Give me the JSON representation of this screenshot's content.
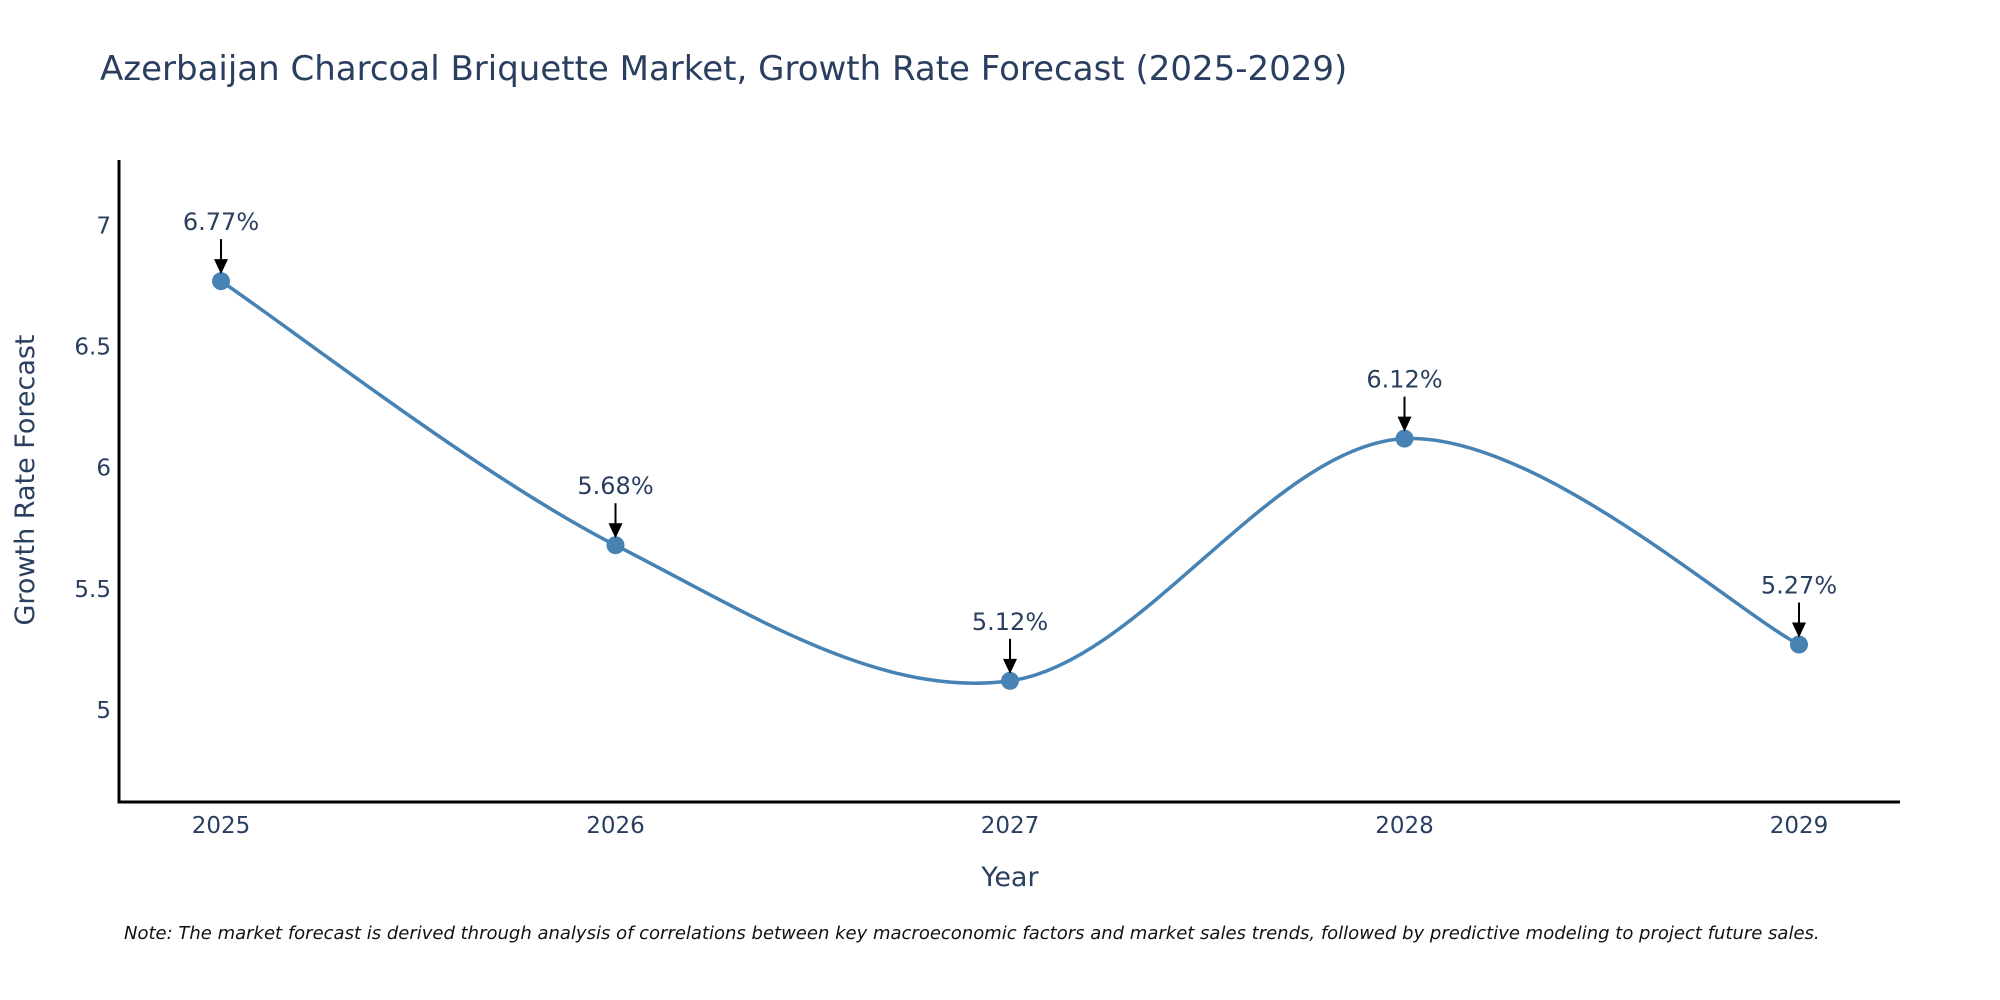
{
  "chart_data": {
    "type": "line",
    "title": "Azerbaijan Charcoal Briquette Market, Growth Rate Forecast (2025-2029)",
    "xlabel": "Year",
    "ylabel": "Growth Rate Forecast",
    "x": [
      "2025",
      "2026",
      "2027",
      "2028",
      "2029"
    ],
    "series": [
      {
        "name": "Growth Rate Forecast",
        "values": [
          6.77,
          5.68,
          5.12,
          6.12,
          5.27
        ],
        "labels": [
          "6.77%",
          "5.68%",
          "5.12%",
          "6.12%",
          "5.27%"
        ]
      }
    ],
    "ylim": [
      4.62,
      7.27
    ],
    "yticks": [
      5,
      5.5,
      6,
      6.5,
      7
    ],
    "ytick_labels": [
      "5",
      "5.5",
      "6",
      "6.5",
      "7"
    ],
    "grid": false,
    "line_shape": "spline",
    "note": "Note: The market forecast is derived through analysis of correlations between key macroeconomic factors and market sales trends, followed by predictive modeling to project future sales.",
    "colors": {
      "line": "#4682b4",
      "marker": "#4682b4",
      "axis": "#000000",
      "text": "#2a3f5f",
      "arrow": "#000000"
    }
  }
}
